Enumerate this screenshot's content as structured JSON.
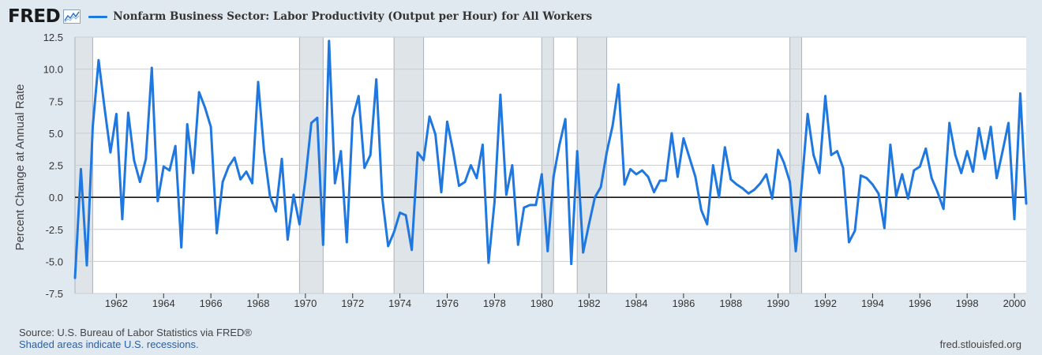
{
  "header": {
    "logo": "FRED",
    "title": "Nonfarm Business Sector: Labor Productivity (Output per Hour) for All Workers",
    "series_color": "#1f77e0"
  },
  "footer": {
    "source": "Source: U.S. Bureau of Labor Statistics via FRED®",
    "shading_note": "Shaded areas indicate U.S. recessions.",
    "url": "fred.stlouisfed.org"
  },
  "chart_data": {
    "type": "line",
    "ylabel": "Percent Change at Annual Rate",
    "ylim": [
      -7.5,
      12.5
    ],
    "yticks": [
      {
        "value": 12.5,
        "label": "12.5"
      },
      {
        "value": 10,
        "label": "10.0"
      },
      {
        "value": 7.5,
        "label": "7.5"
      },
      {
        "value": 5,
        "label": "5.0"
      },
      {
        "value": 2.5,
        "label": "2.5"
      },
      {
        "value": 0,
        "label": "0.0"
      },
      {
        "value": -2.5,
        "label": "-2.5"
      },
      {
        "value": -5,
        "label": "-5.0"
      },
      {
        "value": -7.5,
        "label": "-7.5"
      }
    ],
    "xlim": [
      1960.25,
      2000.5
    ],
    "xticks": [
      {
        "value": 1962,
        "label": "1962"
      },
      {
        "value": 1964,
        "label": "1964"
      },
      {
        "value": 1966,
        "label": "1966"
      },
      {
        "value": 1968,
        "label": "1968"
      },
      {
        "value": 1970,
        "label": "1970"
      },
      {
        "value": 1972,
        "label": "1972"
      },
      {
        "value": 1974,
        "label": "1974"
      },
      {
        "value": 1976,
        "label": "1976"
      },
      {
        "value": 1978,
        "label": "1978"
      },
      {
        "value": 1980,
        "label": "1980"
      },
      {
        "value": 1982,
        "label": "1982"
      },
      {
        "value": 1984,
        "label": "1984"
      },
      {
        "value": 1986,
        "label": "1986"
      },
      {
        "value": 1988,
        "label": "1988"
      },
      {
        "value": 1990,
        "label": "1990"
      },
      {
        "value": 1992,
        "label": "1992"
      },
      {
        "value": 1994,
        "label": "1994"
      },
      {
        "value": 1996,
        "label": "1996"
      },
      {
        "value": 1998,
        "label": "1998"
      },
      {
        "value": 2000,
        "label": "2000"
      }
    ],
    "grid": true,
    "recessions": [
      [
        1960.25,
        1961.0
      ],
      [
        1969.75,
        1970.75
      ],
      [
        1973.75,
        1975.0
      ],
      [
        1980.0,
        1980.5
      ],
      [
        1981.5,
        1982.75
      ],
      [
        1990.5,
        1991.0
      ]
    ],
    "series": [
      {
        "color": "#1f77e0",
        "values": [
          [
            1960.25,
            -6.3
          ],
          [
            1960.5,
            2.2
          ],
          [
            1960.75,
            -5.3
          ],
          [
            1961.0,
            5.5
          ],
          [
            1961.25,
            10.7
          ],
          [
            1961.5,
            7.0
          ],
          [
            1961.75,
            3.5
          ],
          [
            1962.0,
            6.5
          ],
          [
            1962.25,
            -1.7
          ],
          [
            1962.5,
            6.6
          ],
          [
            1962.75,
            2.9
          ],
          [
            1963.0,
            1.2
          ],
          [
            1963.25,
            3.0
          ],
          [
            1963.5,
            10.1
          ],
          [
            1963.75,
            -0.3
          ],
          [
            1964.0,
            2.4
          ],
          [
            1964.25,
            2.1
          ],
          [
            1964.5,
            4.0
          ],
          [
            1964.75,
            -3.9
          ],
          [
            1965.0,
            5.7
          ],
          [
            1965.25,
            1.9
          ],
          [
            1965.5,
            8.2
          ],
          [
            1965.75,
            7.0
          ],
          [
            1966.0,
            5.5
          ],
          [
            1966.25,
            -2.8
          ],
          [
            1966.5,
            1.2
          ],
          [
            1966.75,
            2.4
          ],
          [
            1967.0,
            3.1
          ],
          [
            1967.25,
            1.4
          ],
          [
            1967.5,
            2.0
          ],
          [
            1967.75,
            1.1
          ],
          [
            1968.0,
            9.0
          ],
          [
            1968.25,
            3.6
          ],
          [
            1968.5,
            0.1
          ],
          [
            1968.75,
            -1.1
          ],
          [
            1969.0,
            3.0
          ],
          [
            1969.25,
            -3.3
          ],
          [
            1969.5,
            0.2
          ],
          [
            1969.75,
            -2.1
          ],
          [
            1970.0,
            1.4
          ],
          [
            1970.25,
            5.8
          ],
          [
            1970.5,
            6.2
          ],
          [
            1970.75,
            -3.7
          ],
          [
            1971.0,
            12.2
          ],
          [
            1971.25,
            1.1
          ],
          [
            1971.5,
            3.6
          ],
          [
            1971.75,
            -3.5
          ],
          [
            1972.0,
            6.2
          ],
          [
            1972.25,
            7.9
          ],
          [
            1972.5,
            2.3
          ],
          [
            1972.75,
            3.3
          ],
          [
            1973.0,
            9.2
          ],
          [
            1973.25,
            0.0
          ],
          [
            1973.5,
            -3.8
          ],
          [
            1973.75,
            -2.7
          ],
          [
            1974.0,
            -1.2
          ],
          [
            1974.25,
            -1.4
          ],
          [
            1974.5,
            -4.1
          ],
          [
            1974.75,
            3.5
          ],
          [
            1975.0,
            2.9
          ],
          [
            1975.25,
            6.3
          ],
          [
            1975.5,
            4.9
          ],
          [
            1975.75,
            0.4
          ],
          [
            1976.0,
            5.9
          ],
          [
            1976.25,
            3.6
          ],
          [
            1976.5,
            0.9
          ],
          [
            1976.75,
            1.2
          ],
          [
            1977.0,
            2.5
          ],
          [
            1977.25,
            1.5
          ],
          [
            1977.5,
            4.1
          ],
          [
            1977.75,
            -5.1
          ],
          [
            1978.0,
            -0.4
          ],
          [
            1978.25,
            8.0
          ],
          [
            1978.5,
            0.2
          ],
          [
            1978.75,
            2.5
          ],
          [
            1979.0,
            -3.7
          ],
          [
            1979.25,
            -0.8
          ],
          [
            1979.5,
            -0.6
          ],
          [
            1979.75,
            -0.6
          ],
          [
            1980.0,
            1.8
          ],
          [
            1980.25,
            -4.2
          ],
          [
            1980.5,
            1.6
          ],
          [
            1980.75,
            4.1
          ],
          [
            1981.0,
            6.1
          ],
          [
            1981.25,
            -5.2
          ],
          [
            1981.5,
            3.6
          ],
          [
            1981.75,
            -4.3
          ],
          [
            1982.0,
            -2.1
          ],
          [
            1982.25,
            0.0
          ],
          [
            1982.5,
            0.8
          ],
          [
            1982.75,
            3.5
          ],
          [
            1983.0,
            5.6
          ],
          [
            1983.25,
            8.8
          ],
          [
            1983.5,
            1.0
          ],
          [
            1983.75,
            2.2
          ],
          [
            1984.0,
            1.8
          ],
          [
            1984.25,
            2.1
          ],
          [
            1984.5,
            1.6
          ],
          [
            1984.75,
            0.4
          ],
          [
            1985.0,
            1.3
          ],
          [
            1985.25,
            1.3
          ],
          [
            1985.5,
            5.0
          ],
          [
            1985.75,
            1.6
          ],
          [
            1986.0,
            4.6
          ],
          [
            1986.25,
            3.1
          ],
          [
            1986.5,
            1.6
          ],
          [
            1986.75,
            -1.0
          ],
          [
            1987.0,
            -2.1
          ],
          [
            1987.25,
            2.5
          ],
          [
            1987.5,
            0.0
          ],
          [
            1987.75,
            3.9
          ],
          [
            1988.0,
            1.4
          ],
          [
            1988.25,
            1.0
          ],
          [
            1988.5,
            0.7
          ],
          [
            1988.75,
            0.3
          ],
          [
            1989.0,
            0.6
          ],
          [
            1989.25,
            1.1
          ],
          [
            1989.5,
            1.8
          ],
          [
            1989.75,
            -0.1
          ],
          [
            1990.0,
            3.7
          ],
          [
            1990.25,
            2.7
          ],
          [
            1990.5,
            1.2
          ],
          [
            1990.75,
            -4.2
          ],
          [
            1991.0,
            0.9
          ],
          [
            1991.25,
            6.5
          ],
          [
            1991.5,
            3.3
          ],
          [
            1991.75,
            1.9
          ],
          [
            1992.0,
            7.9
          ],
          [
            1992.25,
            3.3
          ],
          [
            1992.5,
            3.6
          ],
          [
            1992.75,
            2.3
          ],
          [
            1993.0,
            -3.5
          ],
          [
            1993.25,
            -2.6
          ],
          [
            1993.5,
            1.7
          ],
          [
            1993.75,
            1.5
          ],
          [
            1994.0,
            1.0
          ],
          [
            1994.25,
            0.3
          ],
          [
            1994.5,
            -2.4
          ],
          [
            1994.75,
            4.1
          ],
          [
            1995.0,
            0.1
          ],
          [
            1995.25,
            1.8
          ],
          [
            1995.5,
            -0.1
          ],
          [
            1995.75,
            2.1
          ],
          [
            1996.0,
            2.4
          ],
          [
            1996.25,
            3.8
          ],
          [
            1996.5,
            1.5
          ],
          [
            1996.75,
            0.4
          ],
          [
            1997.0,
            -0.9
          ],
          [
            1997.25,
            5.8
          ],
          [
            1997.5,
            3.3
          ],
          [
            1997.75,
            1.9
          ],
          [
            1998.0,
            3.6
          ],
          [
            1998.25,
            2.0
          ],
          [
            1998.5,
            5.4
          ],
          [
            1998.75,
            3.0
          ],
          [
            1999.0,
            5.5
          ],
          [
            1999.25,
            1.5
          ],
          [
            1999.5,
            3.6
          ],
          [
            1999.75,
            5.8
          ],
          [
            2000.0,
            -1.7
          ],
          [
            2000.25,
            8.1
          ],
          [
            2000.5,
            -0.5
          ]
        ]
      }
    ]
  }
}
